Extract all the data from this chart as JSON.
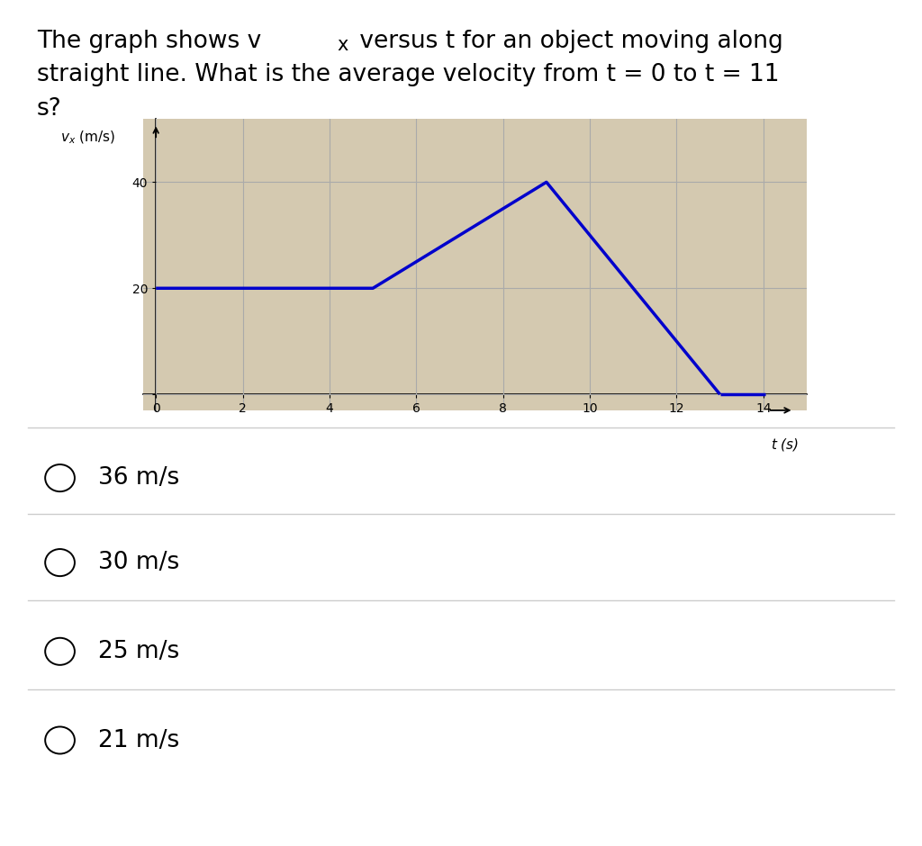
{
  "graph_t": [
    0,
    5,
    9,
    13,
    14.3
  ],
  "graph_vx": [
    20,
    20,
    40,
    0,
    0
  ],
  "line_color": "#0000CC",
  "line_width": 2.5,
  "xticks": [
    0,
    2,
    4,
    6,
    8,
    10,
    12,
    14
  ],
  "yticks": [
    20,
    40
  ],
  "xlim": [
    -0.3,
    15.0
  ],
  "ylim": [
    -3,
    52
  ],
  "grid_color": "#aaaaaa",
  "plot_bg_color": "#d4c9b0",
  "bg_color": "#ffffff",
  "text_color": "#000000",
  "choice_fontsize": 19,
  "choices": [
    "36 m/s",
    "30 m/s",
    "25 m/s",
    "21 m/s"
  ]
}
